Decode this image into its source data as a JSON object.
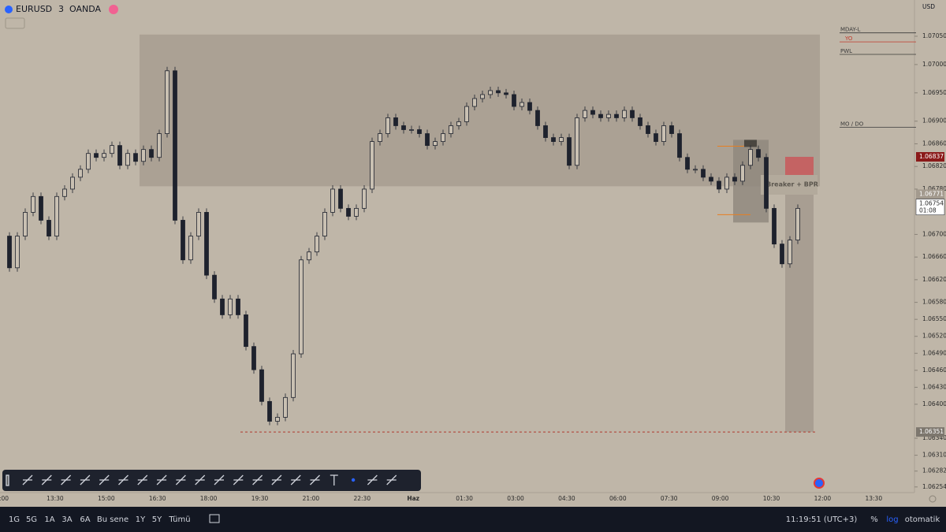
{
  "header": {
    "symbol": "EURUSD",
    "interval": "3",
    "broker": "OANDA",
    "currency": "USD"
  },
  "chart_data": {
    "type": "candlestick",
    "closes": [
      1.06697,
      1.06641,
      1.06697,
      1.06739,
      1.06767,
      1.06725,
      1.06697,
      1.06767,
      1.0678,
      1.06801,
      1.06815,
      1.06843,
      1.06836,
      1.06843,
      1.06857,
      1.06822,
      1.06843,
      1.06829,
      1.0685,
      1.06836,
      1.06878,
      1.06989,
      1.06725,
      1.06655,
      1.06697,
      1.06739,
      1.06628,
      1.06586,
      1.06558,
      1.06586,
      1.06558,
      1.06502,
      1.06461,
      1.06405,
      1.0637,
      1.06377,
      1.06412,
      1.06489,
      1.06655,
      1.06669,
      1.06697,
      1.06739,
      1.0678,
      1.06746,
      1.06732,
      1.06746,
      1.0678,
      1.06864,
      1.06878,
      1.06906,
      1.06892,
      1.06885,
      1.06885,
      1.06878,
      1.06857,
      1.06864,
      1.06878,
      1.06892,
      1.06899,
      1.06926,
      1.0694,
      1.06947,
      1.06954,
      1.0695,
      1.06947,
      1.06926,
      1.06933,
      1.06919,
      1.06892,
      1.06871,
      1.06864,
      1.06871,
      1.06822,
      1.06906,
      1.06919,
      1.06912,
      1.06906,
      1.06912,
      1.06906,
      1.06919,
      1.06906,
      1.06892,
      1.06878,
      1.06864,
      1.06892,
      1.06878,
      1.06836,
      1.06815,
      1.06815,
      1.06801,
      1.06794,
      1.0678,
      1.06801,
      1.06794,
      1.06822,
      1.0685,
      1.06836,
      1.06746,
      1.06683,
      1.06648,
      1.0669,
      1.06746
    ],
    "ylim": [
      1.06244,
      1.07114
    ],
    "yticks": [
      {
        "value": 1.0705,
        "label": "1.07050"
      },
      {
        "value": 1.07,
        "label": "1.07000"
      },
      {
        "value": 1.0695,
        "label": "1.06950"
      },
      {
        "value": 1.069,
        "label": "1.06900"
      },
      {
        "value": 1.0686,
        "label": "1.06860"
      },
      {
        "value": 1.0682,
        "label": "1.06820"
      },
      {
        "value": 1.0678,
        "label": "1.06780"
      },
      {
        "value": 1.067,
        "label": "1.06700"
      },
      {
        "value": 1.0666,
        "label": "1.06660"
      },
      {
        "value": 1.0662,
        "label": "1.06620"
      },
      {
        "value": 1.0658,
        "label": "1.06580"
      },
      {
        "value": 1.0655,
        "label": "1.06550"
      },
      {
        "value": 1.0652,
        "label": "1.06520"
      },
      {
        "value": 1.0649,
        "label": "1.06490"
      },
      {
        "value": 1.0646,
        "label": "1.06460"
      },
      {
        "value": 1.0643,
        "label": "1.06430"
      },
      {
        "value": 1.064,
        "label": "1.06400"
      },
      {
        "value": 1.0634,
        "label": "1.06340"
      },
      {
        "value": 1.0631,
        "label": "1.06310"
      },
      1.06282,
      1.06254
    ],
    "time_labels": [
      ":00",
      "13:30",
      "15:00",
      "16:30",
      "18:00",
      "19:30",
      "21:00",
      "22:30",
      "Haz",
      "01:30",
      "03:00",
      "04:30",
      "06:00",
      "07:30",
      "09:00",
      "10:30",
      "12:00",
      "13:30"
    ],
    "zones": [
      {
        "top": 1.07053,
        "bottom": 1.06785
      },
      {
        "top": 1.06867,
        "bottom": 1.06721
      },
      {
        "top": 1.06837,
        "bottom": 1.06771
      },
      {
        "top": 1.06771,
        "bottom": 1.06351
      }
    ],
    "levels": [
      {
        "name": "MDAY-L",
        "price": 1.07056,
        "color": "#3a3a3a"
      },
      {
        "name": "YO",
        "price": 1.0704,
        "color": "#c0392b"
      },
      {
        "name": "PWL",
        "price": 1.07018,
        "color": "#3a3a3a"
      },
      {
        "name": "MO / DO",
        "price": 1.06889,
        "color": "#3a3a3a"
      }
    ],
    "annotation": "Breaker + BPR",
    "last_price": 1.06754,
    "countdown": "01:08"
  },
  "bottom_bar": {
    "ranges": [
      "1G",
      "5G",
      "1A",
      "3A",
      "6A",
      "Bu sene",
      "1Y",
      "5Y",
      "Tümü"
    ],
    "clock": "11:19:51 (UTC+3)",
    "percent": "%",
    "log": "log",
    "auto": "otomatik"
  }
}
